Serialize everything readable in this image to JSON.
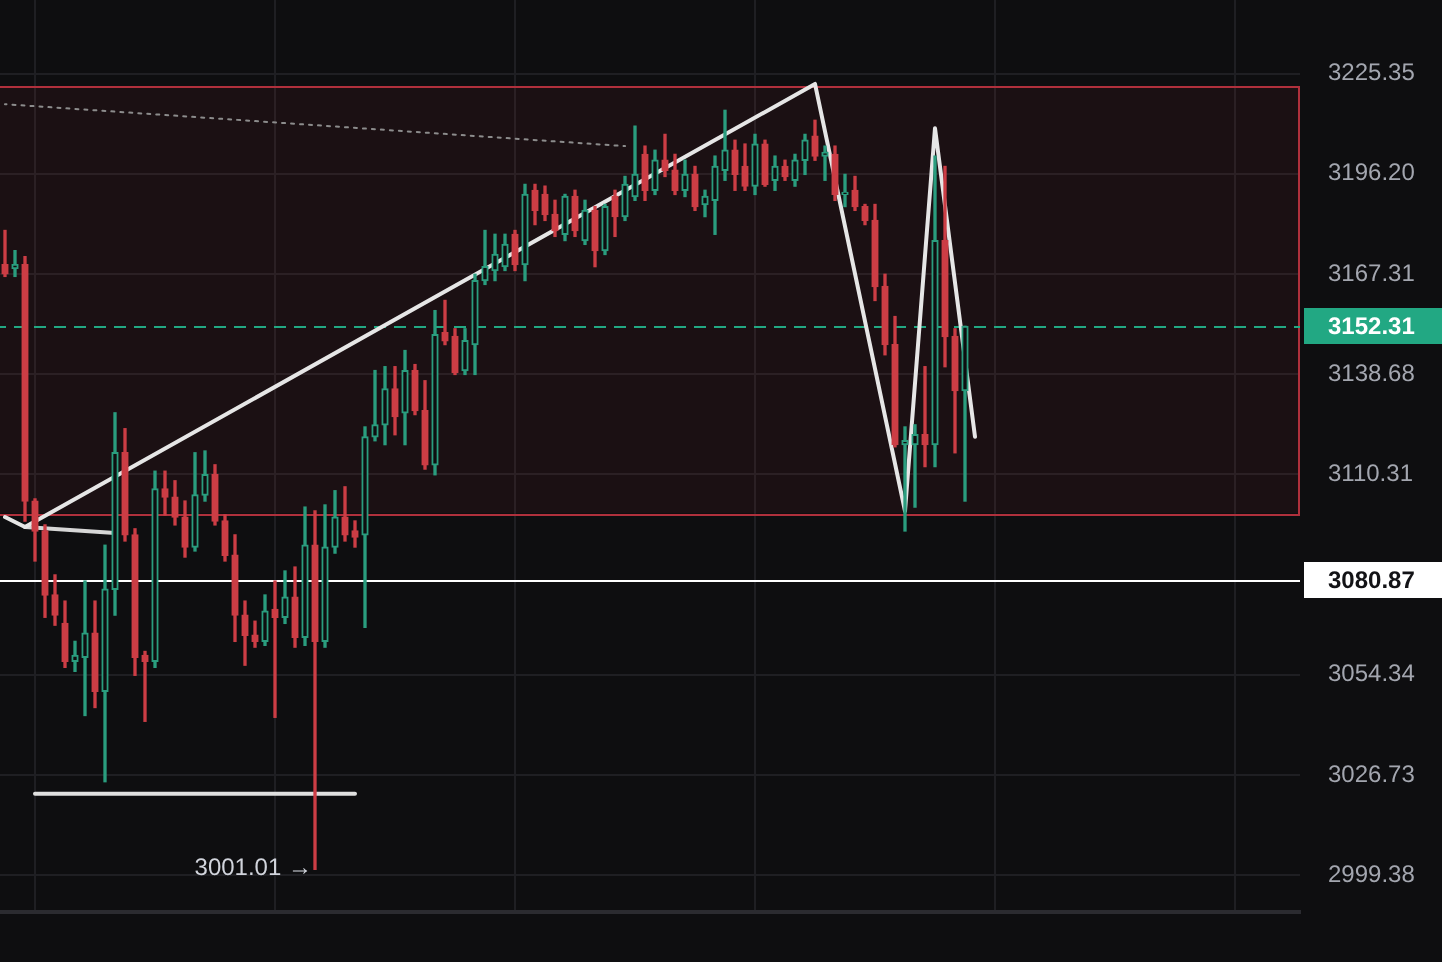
{
  "chart_data": {
    "type": "candlestick",
    "log": true,
    "grid": true,
    "tick_labels": "y",
    "ylim": [
      2989.4,
      3246.9
    ],
    "yticks": [
      3225.35,
      {
        "value": 3196.2,
        "label": "3196.20"
      },
      3167.31,
      3138.68,
      3110.31,
      3054.34,
      3026.73,
      2999.38
    ],
    "categories": [
      null,
      null,
      null,
      null,
      null,
      null,
      null,
      null,
      null,
      null,
      null,
      null,
      null,
      null,
      null,
      null,
      null,
      null,
      null,
      null,
      null,
      null,
      null,
      null,
      null,
      null,
      null,
      null,
      null,
      null,
      null,
      null,
      null,
      null,
      null,
      null,
      null,
      null,
      null,
      null,
      null,
      null,
      null,
      null,
      null,
      null,
      null,
      null,
      null,
      null,
      null,
      null,
      null,
      null,
      null,
      null,
      null,
      null,
      null,
      null,
      null,
      null,
      null,
      null,
      null,
      null,
      null,
      null,
      null,
      null,
      null,
      null,
      null,
      null,
      null,
      null,
      null,
      null,
      null,
      null,
      null,
      null,
      null,
      null,
      null,
      null,
      null,
      null,
      null,
      null,
      null,
      null,
      null,
      null,
      null,
      null,
      null,
      null,
      null,
      null,
      null,
      null,
      null,
      null,
      null,
      null,
      null,
      null,
      null,
      null,
      null,
      null,
      null,
      null,
      null,
      null,
      null,
      null,
      null,
      null,
      null,
      null,
      null,
      null,
      null,
      null,
      null,
      null,
      null,
      null
    ],
    "ohlc": [
      [
        3170.0,
        3179.8,
        3166.6,
        3167.3
      ],
      [
        3168.9,
        3174.0,
        3166.6,
        3170.0
      ],
      [
        3170.0,
        3172.3,
        3097.2,
        3102.8
      ],
      [
        3102.8,
        3103.4,
        3086.0,
        3094.4
      ],
      [
        3094.4,
        3096.1,
        3070.3,
        3076.5
      ],
      [
        3076.5,
        3082.1,
        3068.1,
        3070.9
      ],
      [
        3068.6,
        3074.8,
        3056.4,
        3058.1
      ],
      [
        3058.1,
        3063.6,
        3055.3,
        3059.7
      ],
      [
        3059.2,
        3080.4,
        3043.1,
        3065.9
      ],
      [
        3065.9,
        3074.8,
        3045.3,
        3049.8
      ],
      [
        3049.8,
        3090.4,
        3024.9,
        3078.1
      ],
      [
        3078.1,
        3127.7,
        3070.9,
        3116.4
      ],
      [
        3116.4,
        3123.2,
        3091.6,
        3093.3
      ],
      [
        3093.3,
        3095.0,
        3054.2,
        3059.2
      ],
      [
        3059.7,
        3060.8,
        3041.5,
        3058.1
      ],
      [
        3058.1,
        3111.2,
        3056.4,
        3106.2
      ],
      [
        3106.2,
        3111.2,
        3098.9,
        3103.9
      ],
      [
        3103.9,
        3108.5,
        3096.1,
        3098.3
      ],
      [
        3098.3,
        3102.8,
        3087.1,
        3089.9
      ],
      [
        3089.9,
        3116.4,
        3088.8,
        3104.5
      ],
      [
        3104.5,
        3116.9,
        3102.8,
        3110.2
      ],
      [
        3110.2,
        3113.0,
        3096.1,
        3097.2
      ],
      [
        3097.2,
        3098.9,
        3086.0,
        3087.6
      ],
      [
        3087.6,
        3093.3,
        3063.6,
        3070.9
      ],
      [
        3070.9,
        3074.8,
        3057.0,
        3065.3
      ],
      [
        3065.3,
        3069.2,
        3062.0,
        3063.6
      ],
      [
        3063.6,
        3076.5,
        3062.5,
        3072.0
      ],
      [
        3072.5,
        3080.4,
        3042.6,
        3070.3
      ],
      [
        3070.3,
        3083.2,
        3068.6,
        3075.9
      ],
      [
        3075.9,
        3084.3,
        3062.0,
        3064.7
      ],
      [
        3064.7,
        3101.1,
        3062.5,
        3090.4
      ],
      [
        3090.4,
        3100.0,
        3001.01,
        3063.6
      ],
      [
        3063.6,
        3101.7,
        3062.0,
        3089.9
      ],
      [
        3089.9,
        3105.7,
        3088.2,
        3098.3
      ],
      [
        3098.3,
        3106.8,
        3091.6,
        3093.3
      ],
      [
        3094.4,
        3097.2,
        3089.9,
        3092.7
      ],
      [
        3093.3,
        3123.7,
        3067.5,
        3120.9
      ],
      [
        3120.9,
        3139.7,
        3119.8,
        3124.3
      ],
      [
        3124.3,
        3140.8,
        3118.7,
        3134.5
      ],
      [
        3134.5,
        3140.8,
        3121.5,
        3126.6
      ],
      [
        3127.7,
        3145.4,
        3118.7,
        3139.7
      ],
      [
        3139.7,
        3141.4,
        3127.2,
        3128.3
      ],
      [
        3128.3,
        3136.8,
        3111.8,
        3113.0
      ],
      [
        3113.0,
        3156.8,
        3110.2,
        3149.9
      ],
      [
        3150.5,
        3159.7,
        3147.1,
        3148.2
      ],
      [
        3149.4,
        3151.6,
        3138.6,
        3139.1
      ],
      [
        3139.7,
        3151.6,
        3138.6,
        3148.2
      ],
      [
        3147.1,
        3167.2,
        3138.6,
        3165.4
      ],
      [
        3165.4,
        3179.8,
        3164.3,
        3169.4
      ],
      [
        3168.3,
        3178.7,
        3165.4,
        3172.9
      ],
      [
        3169.4,
        3178.7,
        3168.3,
        3175.8
      ],
      [
        3178.7,
        3179.8,
        3168.3,
        3170.0
      ],
      [
        3170.0,
        3193.1,
        3165.4,
        3190.2
      ],
      [
        3191.4,
        3193.1,
        3181.5,
        3185.6
      ],
      [
        3190.2,
        3192.6,
        3182.7,
        3184.4
      ],
      [
        3184.4,
        3188.5,
        3178.1,
        3179.8
      ],
      [
        3178.7,
        3190.2,
        3176.9,
        3189.6
      ],
      [
        3189.6,
        3191.4,
        3178.1,
        3179.8
      ],
      [
        3176.9,
        3188.5,
        3175.8,
        3185.6
      ],
      [
        3185.6,
        3186.7,
        3169.4,
        3174.0
      ],
      [
        3174.0,
        3187.3,
        3172.9,
        3186.7
      ],
      [
        3189.6,
        3191.4,
        3178.1,
        3183.8
      ],
      [
        3183.8,
        3195.4,
        3182.7,
        3193.1
      ],
      [
        3189.6,
        3210.0,
        3188.5,
        3196.0
      ],
      [
        3201.8,
        3204.2,
        3188.5,
        3191.4
      ],
      [
        3191.4,
        3203.0,
        3190.2,
        3200.1
      ],
      [
        3200.1,
        3207.6,
        3195.4,
        3197.2
      ],
      [
        3197.2,
        3201.8,
        3190.2,
        3191.4
      ],
      [
        3191.4,
        3200.1,
        3189.6,
        3196.0
      ],
      [
        3196.0,
        3198.3,
        3185.6,
        3186.7
      ],
      [
        3187.3,
        3191.4,
        3183.8,
        3189.6
      ],
      [
        3188.5,
        3201.3,
        3178.7,
        3198.3
      ],
      [
        3197.2,
        3214.6,
        3194.3,
        3203.0
      ],
      [
        3203.0,
        3205.9,
        3191.4,
        3196.0
      ],
      [
        3198.3,
        3204.8,
        3191.4,
        3192.6
      ],
      [
        3192.6,
        3207.6,
        3190.2,
        3204.8
      ],
      [
        3204.8,
        3205.9,
        3192.6,
        3193.1
      ],
      [
        3194.3,
        3201.3,
        3191.4,
        3198.3
      ],
      [
        3198.3,
        3200.1,
        3194.3,
        3195.4
      ],
      [
        3194.3,
        3201.8,
        3192.6,
        3200.1
      ],
      [
        3200.1,
        3207.6,
        3196.0,
        3205.9
      ],
      [
        3207.1,
        3211.7,
        3200.1,
        3201.3
      ],
      [
        3201.3,
        3204.2,
        3194.3,
        3202.4
      ],
      [
        3201.8,
        3204.2,
        3188.5,
        3190.2
      ],
      [
        3190.2,
        3196.0,
        3186.7,
        3190.8
      ],
      [
        3191.4,
        3195.4,
        3185.6,
        3186.7
      ],
      [
        3186.7,
        3187.3,
        3181.5,
        3182.7
      ],
      [
        3182.7,
        3187.3,
        3159.7,
        3163.7
      ],
      [
        3163.7,
        3167.2,
        3144.2,
        3147.1
      ],
      [
        3147.1,
        3155.1,
        3118.1,
        3118.7
      ],
      [
        3118.7,
        3123.7,
        3094.4,
        3119.8
      ],
      [
        3118.7,
        3124.3,
        3101.1,
        3121.5
      ],
      [
        3121.5,
        3140.8,
        3112.5,
        3118.7
      ],
      [
        3118.7,
        3201.3,
        3112.5,
        3176.9
      ],
      [
        3176.9,
        3198.3,
        3140.8,
        3149.4
      ],
      [
        3149.4,
        3151.6,
        3116.4,
        3134.0
      ],
      [
        3134.0,
        3152.31,
        3102.8,
        3152.31
      ],
      null,
      null,
      null,
      null,
      null,
      null,
      null,
      null,
      null,
      null,
      null,
      null,
      null,
      null,
      null,
      null,
      null,
      null,
      null,
      null,
      null,
      null,
      null,
      null,
      null,
      null,
      null,
      null,
      null,
      null,
      null,
      null,
      null
    ],
    "colors": [
      "#cc3d45",
      "#2a9d7e",
      "#cc3d45",
      "#cc3d45",
      "#cc3d45",
      "#cc3d45",
      "#cc3d45",
      "#2a9d7e",
      "#2a9d7e",
      "#cc3d45",
      "#2a9d7e",
      "#2a9d7e",
      "#cc3d45",
      "#cc3d45",
      "#cc3d45",
      "#2a9d7e",
      "#cc3d45",
      "#cc3d45",
      "#cc3d45",
      "#2a9d7e",
      "#2a9d7e",
      "#cc3d45",
      "#cc3d45",
      "#cc3d45",
      "#cc3d45",
      "#cc3d45",
      "#2a9d7e",
      "#cc3d45",
      "#2a9d7e",
      "#cc3d45",
      "#2a9d7e",
      "#cc3d45",
      "#2a9d7e",
      "#2a9d7e",
      "#cc3d45",
      "#cc3d45",
      "#2a9d7e",
      "#2a9d7e",
      "#2a9d7e",
      "#cc3d45",
      "#2a9d7e",
      "#cc3d45",
      "#cc3d45",
      "#2a9d7e",
      "#cc3d45",
      "#cc3d45",
      "#2a9d7e",
      "#2a9d7e",
      "#2a9d7e",
      "#2a9d7e",
      "#2a9d7e",
      "#cc3d45",
      "#2a9d7e",
      "#cc3d45",
      "#cc3d45",
      "#cc3d45",
      "#2a9d7e",
      "#cc3d45",
      "#2a9d7e",
      "#cc3d45",
      "#2a9d7e",
      "#cc3d45",
      "#2a9d7e",
      "#2a9d7e",
      "#cc3d45",
      "#2a9d7e",
      "#cc3d45",
      "#cc3d45",
      "#2a9d7e",
      "#cc3d45",
      "#2a9d7e",
      "#2a9d7e",
      "#2a9d7e",
      "#cc3d45",
      "#cc3d45",
      "#2a9d7e",
      "#cc3d45",
      "#2a9d7e",
      "#cc3d45",
      "#2a9d7e",
      "#2a9d7e",
      "#cc3d45",
      "#2a9d7e",
      "#cc3d45",
      "#2a9d7e",
      "#cc3d45",
      "#cc3d45",
      "#cc3d45",
      "#cc3d45",
      "#cc3d45",
      "#2a9d7e",
      "#2a9d7e",
      "#cc3d45",
      "#2a9d7e",
      "#cc3d45",
      "#cc3d45",
      "#2a9d7e",
      null,
      null,
      null,
      null,
      null,
      null,
      null,
      null,
      null,
      null,
      null,
      null,
      null,
      null,
      null,
      null,
      null,
      null,
      null,
      null,
      null,
      null,
      null,
      null,
      null,
      null,
      null,
      null,
      null,
      null,
      null,
      null,
      null
    ],
    "series": [
      {
        "type": "line",
        "color": "#e6e6e6",
        "values": [
          3098.3,
          null,
          3095.5,
          null,
          null,
          null,
          null,
          null,
          null,
          null,
          null,
          null,
          null,
          null,
          null,
          null,
          null,
          null,
          null,
          null,
          null,
          null,
          null,
          null,
          null,
          null,
          null,
          null,
          null,
          null,
          null,
          null,
          null,
          null,
          null,
          null,
          null,
          null,
          null,
          null,
          null,
          null,
          null,
          null,
          null,
          null,
          null,
          null,
          null,
          null,
          null,
          null,
          null,
          null,
          null,
          null,
          null,
          null,
          null,
          null,
          null,
          null,
          null,
          null,
          null,
          null,
          null,
          null,
          null,
          null,
          null,
          null,
          null,
          null,
          null,
          null,
          null,
          null,
          null,
          null,
          null,
          3222.3,
          null,
          null,
          null,
          null,
          null,
          null,
          null,
          null,
          3100.0,
          null,
          null,
          3209.4,
          null,
          null,
          null,
          3120.9,
          null,
          null,
          null,
          null,
          null,
          null,
          null,
          null,
          null,
          null,
          null,
          null,
          null,
          null,
          null,
          null,
          null,
          null,
          null,
          null,
          null,
          null,
          null,
          null,
          null,
          null,
          null,
          null,
          null,
          null,
          null,
          null
        ]
      },
      {
        "type": "line",
        "color": "#d6d6d6",
        "values": [
          null,
          null,
          3095.5,
          null,
          null,
          null,
          null,
          null,
          null,
          null,
          null,
          3093.8,
          null,
          null,
          null,
          null,
          null,
          null,
          null,
          null,
          null,
          null,
          null,
          null,
          null,
          null,
          null,
          null,
          null,
          null,
          null,
          null,
          null,
          null,
          null,
          null,
          null,
          null,
          null,
          null,
          null,
          null,
          null,
          null,
          null,
          null,
          null,
          null,
          null,
          null,
          null,
          null,
          null,
          null,
          null,
          null,
          null,
          null,
          null,
          null,
          null,
          null,
          null,
          null,
          null,
          null,
          null,
          null,
          null,
          null,
          null,
          null,
          null,
          null,
          null,
          null,
          null,
          null,
          null,
          null,
          null,
          null,
          null,
          null,
          null,
          null,
          null,
          null,
          null,
          null,
          null,
          null,
          null,
          null,
          null,
          null,
          null,
          null,
          null,
          null,
          null,
          null,
          null,
          null,
          null,
          null,
          null,
          null,
          null,
          null,
          null,
          null,
          null,
          null,
          null,
          null,
          null,
          null,
          null,
          null,
          null,
          null,
          null,
          null,
          null,
          null,
          null,
          null,
          null,
          null
        ]
      },
      {
        "type": "line",
        "color": "#8c8c8c",
        "line_style": "dotted",
        "values": [
          3216.4,
          null,
          null,
          null,
          null,
          null,
          null,
          null,
          null,
          null,
          null,
          null,
          null,
          null,
          null,
          null,
          null,
          null,
          null,
          null,
          null,
          null,
          null,
          null,
          null,
          null,
          null,
          null,
          null,
          null,
          null,
          null,
          null,
          null,
          null,
          null,
          null,
          null,
          null,
          null,
          null,
          null,
          null,
          null,
          null,
          null,
          null,
          null,
          null,
          null,
          null,
          null,
          null,
          null,
          null,
          null,
          null,
          null,
          null,
          null,
          null,
          null,
          3204.2,
          null,
          null,
          null,
          null,
          null,
          null,
          null,
          null,
          null,
          null,
          null,
          null,
          null,
          null,
          null,
          null,
          null,
          null,
          null,
          null,
          null,
          null,
          null,
          null,
          null,
          null,
          null,
          null,
          null,
          null,
          null,
          null,
          null,
          null,
          null,
          null,
          null,
          null,
          null,
          null,
          null,
          null,
          null,
          null,
          null,
          null,
          null,
          null,
          null,
          null,
          null,
          null,
          null,
          null,
          null,
          null,
          null,
          null,
          null,
          null,
          null,
          null,
          null,
          null,
          null,
          null,
          null
        ]
      },
      {
        "type": "line",
        "color": "#e0e0e0",
        "values": [
          null,
          null,
          null,
          3021.6,
          null,
          null,
          null,
          null,
          null,
          null,
          null,
          null,
          null,
          null,
          null,
          null,
          null,
          null,
          null,
          null,
          null,
          null,
          null,
          null,
          null,
          null,
          null,
          null,
          null,
          null,
          null,
          null,
          null,
          null,
          null,
          3021.6,
          null,
          null,
          null,
          null,
          null,
          null,
          null,
          null,
          null,
          null,
          null,
          null,
          null,
          null,
          null,
          null,
          null,
          null,
          null,
          null,
          null,
          null,
          null,
          null,
          null,
          null,
          null,
          null,
          null,
          null,
          null,
          null,
          null,
          null,
          null,
          null,
          null,
          null,
          null,
          null,
          null,
          null,
          null,
          null,
          null,
          null,
          null,
          null,
          null,
          null,
          null,
          null,
          null,
          null,
          null,
          null,
          null,
          null,
          null,
          null,
          null,
          null,
          null,
          null,
          null,
          null,
          null,
          null,
          null,
          null,
          null,
          null,
          null,
          null,
          null,
          null,
          null,
          null,
          null,
          null,
          null,
          null,
          null,
          null,
          null,
          null,
          null,
          null,
          null,
          null,
          null,
          null,
          null,
          null
        ]
      }
    ],
    "bands": [
      {
        "axis": "y",
        "from": 3099.4,
        "to": 3221.7,
        "color": "#b0303c"
      }
    ],
    "ref_lines": [
      {
        "axis": "y",
        "value": 3152.31,
        "label": "3152.31",
        "color": "#22a883",
        "line_style": "dashed"
      },
      {
        "axis": "y",
        "value": 3080.87,
        "label": "3080.87",
        "color": "#ffffff",
        "line_style": "solid"
      }
    ],
    "annotations": [
      "3001.01 →"
    ]
  }
}
